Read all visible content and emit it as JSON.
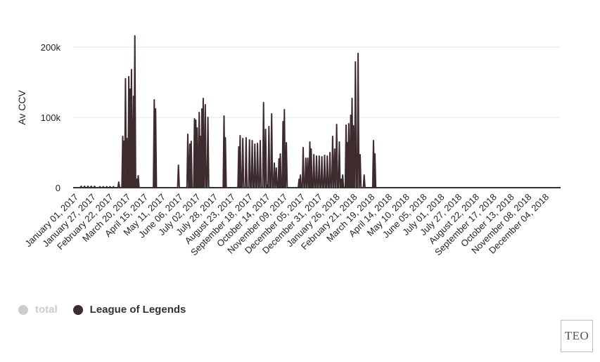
{
  "colors": {
    "series": "#3d2b2e",
    "total_legend": "#cccccc",
    "grid": "#e6e6e6",
    "axis": "#333333"
  },
  "legend": {
    "total": {
      "label": "total",
      "enabled": false
    },
    "league": {
      "label": "League of Legends",
      "enabled": true
    }
  },
  "logo": {
    "text": "TEO"
  },
  "chart_data": {
    "type": "line",
    "title": "",
    "xlabel": "",
    "ylabel": "Av CCV",
    "ylim": [
      0,
      220000
    ],
    "yticks": [
      0,
      100000,
      200000
    ],
    "ytick_labels": [
      "0",
      "100k",
      "200k"
    ],
    "xlim": [
      0,
      727
    ],
    "xticks": [
      0,
      26,
      52,
      78,
      104,
      130,
      156,
      182,
      208,
      234,
      260,
      286,
      312,
      338,
      364,
      390,
      416,
      442,
      468,
      494,
      520,
      546,
      572,
      598,
      624,
      650,
      676,
      702
    ],
    "xtick_labels": [
      "January 01, 2017",
      "January 27, 2017",
      "February 22, 2017",
      "March 20, 2017",
      "April 15, 2017",
      "May 11, 2017",
      "June 06, 2017",
      "July 02, 2017",
      "July 28, 2017",
      "August 23, 2017",
      "September 18, 2017",
      "October 14, 2017",
      "November 09, 2017",
      "December 05, 2017",
      "December 31, 2017",
      "January 26, 2018",
      "February 21, 2018",
      "March 19, 2018",
      "April 14, 2018",
      "May 10, 2018",
      "June 05, 2018",
      "July 01, 2018",
      "July 27, 2018",
      "August 22, 2018",
      "September 17, 2018",
      "October 13, 2018",
      "November 08, 2018",
      "December 04, 2018"
    ],
    "series": [
      {
        "name": "League of Legends",
        "spikes": [
          [
            12,
            2000
          ],
          [
            17,
            2000
          ],
          [
            22,
            2000
          ],
          [
            27,
            2000
          ],
          [
            32,
            2000
          ],
          [
            40,
            1500
          ],
          [
            45,
            1500
          ],
          [
            50,
            1500
          ],
          [
            55,
            1500
          ],
          [
            60,
            1500
          ],
          [
            68,
            8000
          ],
          [
            74,
            73000
          ],
          [
            76,
            66000
          ],
          [
            78,
            155000
          ],
          [
            80,
            70000
          ],
          [
            83,
            158000
          ],
          [
            85,
            140000
          ],
          [
            87,
            168000
          ],
          [
            90,
            130000
          ],
          [
            92,
            216000
          ],
          [
            95,
            12000
          ],
          [
            97,
            17000
          ],
          [
            121,
            125000
          ],
          [
            123,
            112000
          ],
          [
            157,
            32000
          ],
          [
            171,
            76000
          ],
          [
            174,
            62000
          ],
          [
            176,
            66000
          ],
          [
            181,
            98000
          ],
          [
            183,
            96000
          ],
          [
            185,
            85000
          ],
          [
            188,
            107000
          ],
          [
            190,
            73000
          ],
          [
            192,
            112000
          ],
          [
            194,
            127000
          ],
          [
            197,
            118000
          ],
          [
            201,
            100000
          ],
          [
            225,
            102000
          ],
          [
            227,
            71000
          ],
          [
            247,
            58000
          ],
          [
            249,
            74000
          ],
          [
            253,
            70000
          ],
          [
            258,
            71000
          ],
          [
            263,
            68000
          ],
          [
            267,
            67000
          ],
          [
            271,
            62000
          ],
          [
            275,
            63000
          ],
          [
            279,
            67000
          ],
          [
            284,
            121000
          ],
          [
            287,
            83000
          ],
          [
            290,
            4000
          ],
          [
            292,
            87000
          ],
          [
            296,
            105000
          ],
          [
            300,
            35000
          ],
          [
            303,
            28000
          ],
          [
            307,
            41000
          ],
          [
            309,
            48000
          ],
          [
            313,
            94000
          ],
          [
            315,
            111000
          ],
          [
            318,
            64000
          ],
          [
            337,
            12000
          ],
          [
            339,
            18000
          ],
          [
            343,
            57000
          ],
          [
            347,
            42000
          ],
          [
            350,
            42000
          ],
          [
            353,
            65000
          ],
          [
            355,
            55000
          ],
          [
            359,
            47000
          ],
          [
            363,
            45000
          ],
          [
            367,
            45000
          ],
          [
            371,
            44000
          ],
          [
            375,
            46000
          ],
          [
            379,
            45000
          ],
          [
            383,
            50000
          ],
          [
            387,
            73000
          ],
          [
            390,
            55000
          ],
          [
            393,
            90000
          ],
          [
            397,
            65000
          ],
          [
            400,
            12000
          ],
          [
            402,
            18000
          ],
          [
            407,
            89000
          ],
          [
            409,
            64000
          ],
          [
            411,
            91000
          ],
          [
            414,
            103000
          ],
          [
            416,
            127000
          ],
          [
            418,
            88000
          ],
          [
            421,
            179000
          ],
          [
            425,
            191000
          ],
          [
            428,
            47000
          ],
          [
            434,
            18000
          ],
          [
            448,
            67000
          ],
          [
            450,
            48000
          ]
        ]
      }
    ]
  }
}
